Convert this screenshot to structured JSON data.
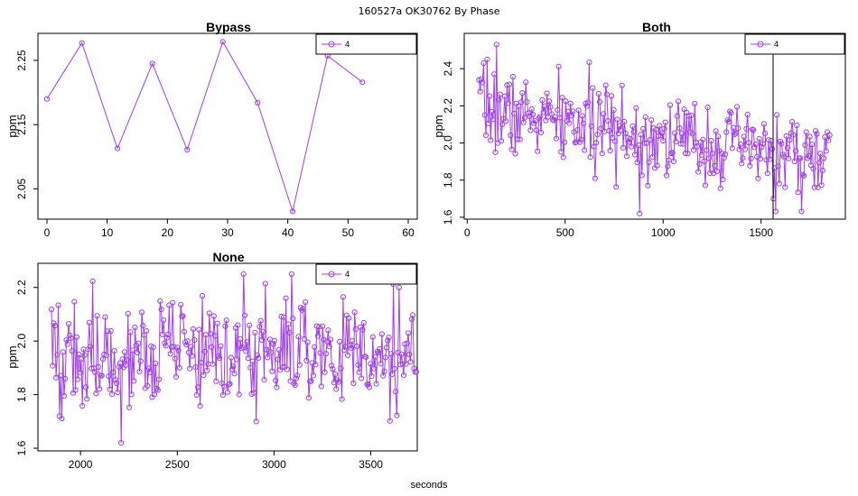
{
  "suptitle": "160527a    OK30762   By Phase",
  "xlabel": "seconds",
  "colors": {
    "series": "#a040e8",
    "axis": "#000000",
    "background": "#ffffff"
  },
  "chart_data": [
    {
      "type": "line",
      "title": "Bypass",
      "ylabel": "ppm",
      "legend": [
        "4"
      ],
      "legend_position": "top-right",
      "xlim": [
        -1.5,
        61.5
      ],
      "ylim": [
        2.003,
        2.292
      ],
      "xticks": [
        0,
        10,
        20,
        30,
        40,
        50,
        60
      ],
      "yticks": [
        2.05,
        2.15,
        2.25
      ],
      "series": [
        {
          "name": "4",
          "x": [
            0,
            5.8,
            11.7,
            17.5,
            23.3,
            29.2,
            35,
            40.8,
            46.6,
            52.4
          ],
          "y": [
            2.19,
            2.277,
            2.113,
            2.245,
            2.111,
            2.279,
            2.184,
            2.015,
            2.257,
            2.216
          ]
        }
      ]
    },
    {
      "type": "line",
      "title": "Both",
      "ylabel": "ppm",
      "legend": [
        "4"
      ],
      "legend_position": "top-right",
      "xlim": [
        -15,
        1930
      ],
      "ylim": [
        1.59,
        2.59
      ],
      "xticks": [
        0,
        500,
        1000,
        1500
      ],
      "yticks": [
        1.6,
        1.8,
        2.0,
        2.2,
        2.4
      ],
      "series": [
        {
          "name": "4",
          "points": 300,
          "x_start": 60,
          "x_end": 1850,
          "y_start": 2.18,
          "y_end": 1.9,
          "noise": 0.11,
          "seed": 7,
          "highlights": [
            [
              150,
              2.53
            ],
            [
              100,
              2.45
            ],
            [
              790,
              2.31
            ],
            [
              880,
              1.62
            ],
            [
              1560,
              1.62
            ],
            [
              1565,
              1.7
            ]
          ]
        }
      ]
    },
    {
      "type": "line",
      "title": "None",
      "ylabel": "ppm",
      "legend": [
        "4"
      ],
      "legend_position": "top-right",
      "xlim": [
        1780,
        3740
      ],
      "ylim": [
        1.59,
        2.29
      ],
      "xticks": [
        2000,
        2500,
        3000,
        3500
      ],
      "yticks": [
        1.6,
        1.8,
        2.0,
        2.2
      ],
      "series": [
        {
          "name": "4",
          "points": 320,
          "x_start": 1850,
          "x_end": 3735,
          "y_start": 1.95,
          "y_end": 1.95,
          "noise": 0.1,
          "seed": 19,
          "highlights": [
            [
              2210,
              1.62
            ],
            [
              2840,
              2.25
            ],
            [
              3090,
              2.25
            ],
            [
              2910,
              1.7
            ],
            [
              1890,
              1.72
            ]
          ]
        }
      ]
    }
  ]
}
